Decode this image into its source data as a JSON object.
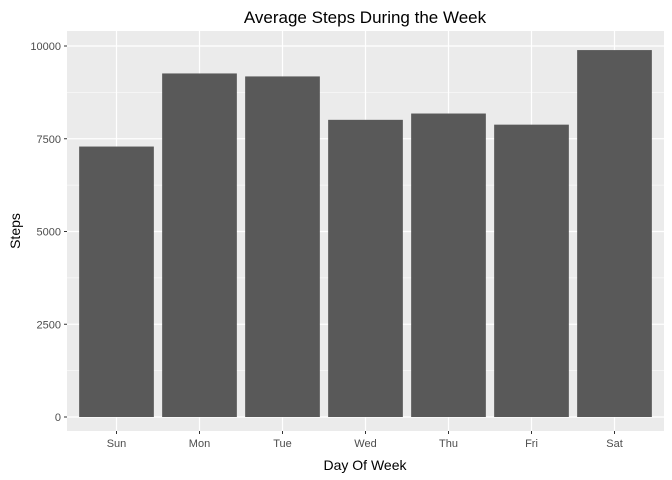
{
  "chart_data": {
    "type": "bar",
    "title": "Average Steps During the Week",
    "xlabel": "Day Of Week",
    "ylabel": "Steps",
    "categories": [
      "Sun",
      "Mon",
      "Tue",
      "Wed",
      "Thu",
      "Fri",
      "Sat"
    ],
    "values": [
      7290,
      9260,
      9180,
      8010,
      8180,
      7880,
      9890
    ],
    "ylim": [
      0,
      10000
    ],
    "yticks": [
      0,
      2500,
      5000,
      7500,
      10000
    ],
    "ytick_labels": [
      "0",
      "2500",
      "5000",
      "7500",
      "10000"
    ],
    "grid": true,
    "legend": "none",
    "colors": {
      "panel_background": "#ebebeb",
      "grid_major": "#ffffff",
      "bar_fill": "#595959",
      "tick_text": "#4d4d4d"
    }
  }
}
